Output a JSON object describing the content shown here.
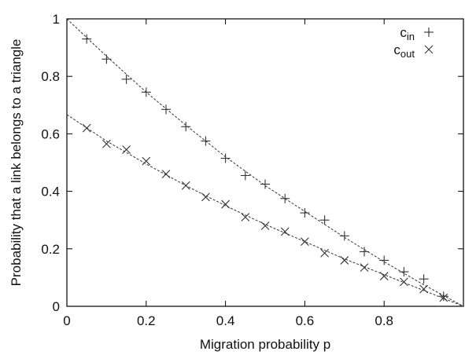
{
  "chart_data": {
    "type": "scatter",
    "xlabel": "Migration probability p",
    "ylabel": "Probability that a link belongs to a triangle",
    "xlim": [
      0,
      1
    ],
    "ylim": [
      0,
      1
    ],
    "xticks": [
      "0",
      "0.2",
      "0.4",
      "0.6",
      "0.8"
    ],
    "yticks": [
      "0",
      "0.2",
      "0.4",
      "0.6",
      "0.8",
      "1"
    ],
    "legend_position": "top-right",
    "grid": false,
    "series": [
      {
        "name_main": "c",
        "name_sub": "in",
        "marker": "plus",
        "x": [
          0.05,
          0.1,
          0.15,
          0.2,
          0.25,
          0.3,
          0.35,
          0.4,
          0.45,
          0.5,
          0.55,
          0.6,
          0.65,
          0.7,
          0.75,
          0.8,
          0.85,
          0.9,
          0.95
        ],
        "y": [
          0.93,
          0.86,
          0.79,
          0.745,
          0.685,
          0.625,
          0.575,
          0.515,
          0.455,
          0.425,
          0.375,
          0.325,
          0.3,
          0.245,
          0.19,
          0.16,
          0.12,
          0.095,
          0.035
        ],
        "fit": {
          "x": [
            0,
            0.1,
            0.2,
            0.3,
            0.4,
            0.5,
            0.6,
            0.7,
            0.8,
            0.9,
            1.0
          ],
          "y": [
            1.0,
            0.87,
            0.745,
            0.63,
            0.52,
            0.42,
            0.33,
            0.24,
            0.155,
            0.075,
            0.0
          ]
        }
      },
      {
        "name_main": "c",
        "name_sub": "out",
        "marker": "cross",
        "x": [
          0.05,
          0.1,
          0.15,
          0.2,
          0.25,
          0.3,
          0.35,
          0.4,
          0.45,
          0.5,
          0.55,
          0.6,
          0.65,
          0.7,
          0.75,
          0.8,
          0.85,
          0.9,
          0.95
        ],
        "y": [
          0.62,
          0.565,
          0.545,
          0.505,
          0.46,
          0.42,
          0.38,
          0.355,
          0.31,
          0.28,
          0.26,
          0.225,
          0.185,
          0.16,
          0.135,
          0.105,
          0.085,
          0.06,
          0.03
        ],
        "fit": {
          "x": [
            0,
            0.1,
            0.2,
            0.3,
            0.4,
            0.5,
            0.6,
            0.7,
            0.8,
            0.9,
            1.0
          ],
          "y": [
            0.667,
            0.575,
            0.495,
            0.42,
            0.35,
            0.285,
            0.225,
            0.165,
            0.11,
            0.055,
            0.0
          ]
        }
      }
    ]
  }
}
